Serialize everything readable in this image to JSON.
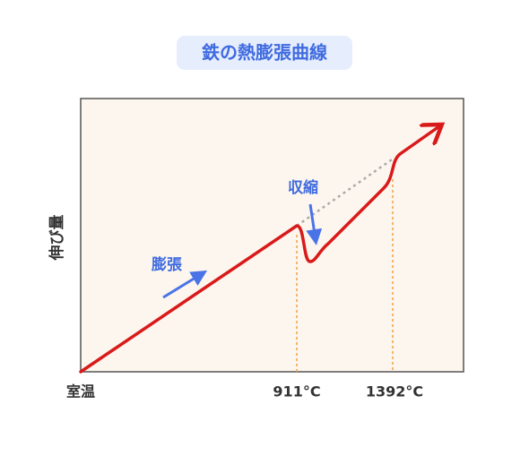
{
  "title": "鉄の熱膨張曲線",
  "y_label": "伸び量",
  "x_labels": [
    "室温",
    "911°C",
    "1392°C"
  ],
  "annotations": [
    "膨張",
    "収縮"
  ]
}
